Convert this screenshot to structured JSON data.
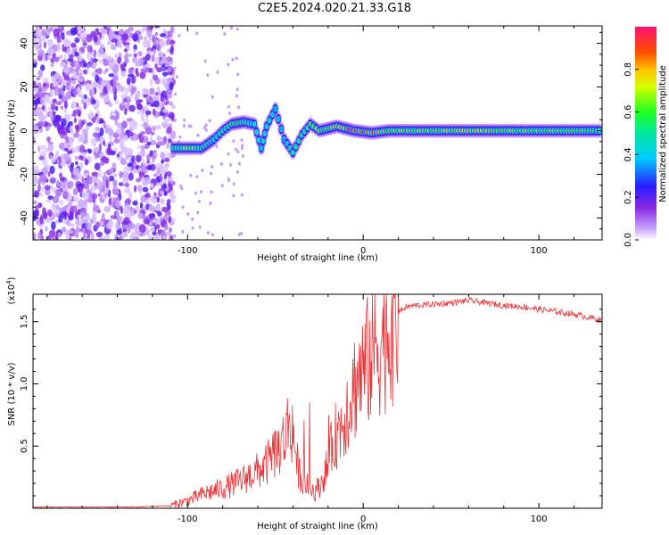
{
  "title": "C2E5.2024.020.21.33.G18",
  "chart_data": [
    {
      "type": "heatmap",
      "xlabel": "Height of straight line (km)",
      "ylabel": "Frequency (Hz)",
      "xlim": [
        -188,
        136
      ],
      "ylim": [
        -50,
        48
      ],
      "xticks": [
        -100,
        0,
        100
      ],
      "yticks": [
        -40,
        -20,
        0,
        20,
        40
      ],
      "colorbar": {
        "label": "Normalized spectral amplitude",
        "range": [
          0,
          1
        ],
        "ticks": [
          "0.0",
          "0.2",
          "0.4",
          "0.6",
          "0.8"
        ]
      },
      "noise_region_x": [
        -188,
        -108
      ],
      "signal_track": [
        {
          "x": -108,
          "y": -8,
          "amp": 0.45
        },
        {
          "x": -100,
          "y": -8,
          "amp": 0.7
        },
        {
          "x": -92,
          "y": -8,
          "amp": 0.5
        },
        {
          "x": -85,
          "y": -4,
          "amp": 0.45
        },
        {
          "x": -80,
          "y": 0,
          "amp": 0.5
        },
        {
          "x": -75,
          "y": 3,
          "amp": 0.55
        },
        {
          "x": -68,
          "y": 4,
          "amp": 0.5
        },
        {
          "x": -62,
          "y": 3,
          "amp": 0.45
        },
        {
          "x": -58,
          "y": -8,
          "amp": 0.4
        },
        {
          "x": -55,
          "y": 2,
          "amp": 0.45
        },
        {
          "x": -50,
          "y": 10,
          "amp": 0.4
        },
        {
          "x": -45,
          "y": -4,
          "amp": 0.4
        },
        {
          "x": -40,
          "y": -10,
          "amp": 0.45
        },
        {
          "x": -35,
          "y": -2,
          "amp": 0.5
        },
        {
          "x": -30,
          "y": 3,
          "amp": 0.55
        },
        {
          "x": -25,
          "y": 0,
          "amp": 0.65
        },
        {
          "x": -15,
          "y": 2,
          "amp": 0.7
        },
        {
          "x": -5,
          "y": 0,
          "amp": 0.9
        },
        {
          "x": 5,
          "y": -1,
          "amp": 0.85
        },
        {
          "x": 15,
          "y": 0,
          "amp": 0.65
        },
        {
          "x": 30,
          "y": 0,
          "amp": 0.6
        },
        {
          "x": 60,
          "y": 0,
          "amp": 0.7
        },
        {
          "x": 90,
          "y": 0,
          "amp": 0.6
        },
        {
          "x": 136,
          "y": 0,
          "amp": 0.55
        }
      ]
    },
    {
      "type": "line",
      "xlabel": "Height of straight line (km)",
      "ylabel": "SNR (10 * v/v)",
      "scale_label": "(x10^4)",
      "xlim": [
        -188,
        136
      ],
      "ylim": [
        0,
        1.72
      ],
      "xticks": [
        -100,
        0,
        100
      ],
      "yticks": [
        0.5,
        1.0,
        1.5
      ],
      "ytick_labels": [
        "0.5",
        "1.0",
        "1.5"
      ],
      "color": "#e8373b",
      "series": [
        {
          "x": [
            -188,
            -160,
            -130,
            -110,
            -100,
            -90,
            -80,
            -70,
            -60,
            -55,
            -50,
            -45,
            -42,
            -40,
            -37,
            -34,
            -30,
            -27,
            -24,
            -20,
            -17,
            -15,
            -12,
            -10,
            -6,
            -3,
            0,
            5,
            10,
            15,
            20,
            25,
            30,
            40,
            50,
            60,
            70,
            80,
            90,
            100,
            110,
            120,
            130,
            136
          ],
          "y": [
            0.01,
            0.01,
            0.01,
            0.02,
            0.06,
            0.12,
            0.16,
            0.22,
            0.3,
            0.35,
            0.45,
            0.55,
            0.7,
            0.62,
            0.3,
            0.22,
            0.15,
            0.14,
            0.2,
            0.35,
            0.55,
            0.6,
            0.68,
            0.78,
            0.95,
            1.05,
            1.1,
            1.25,
            1.35,
            1.45,
            1.58,
            1.62,
            1.63,
            1.64,
            1.65,
            1.67,
            1.65,
            1.63,
            1.62,
            1.6,
            1.58,
            1.56,
            1.53,
            1.51
          ]
        }
      ]
    }
  ]
}
